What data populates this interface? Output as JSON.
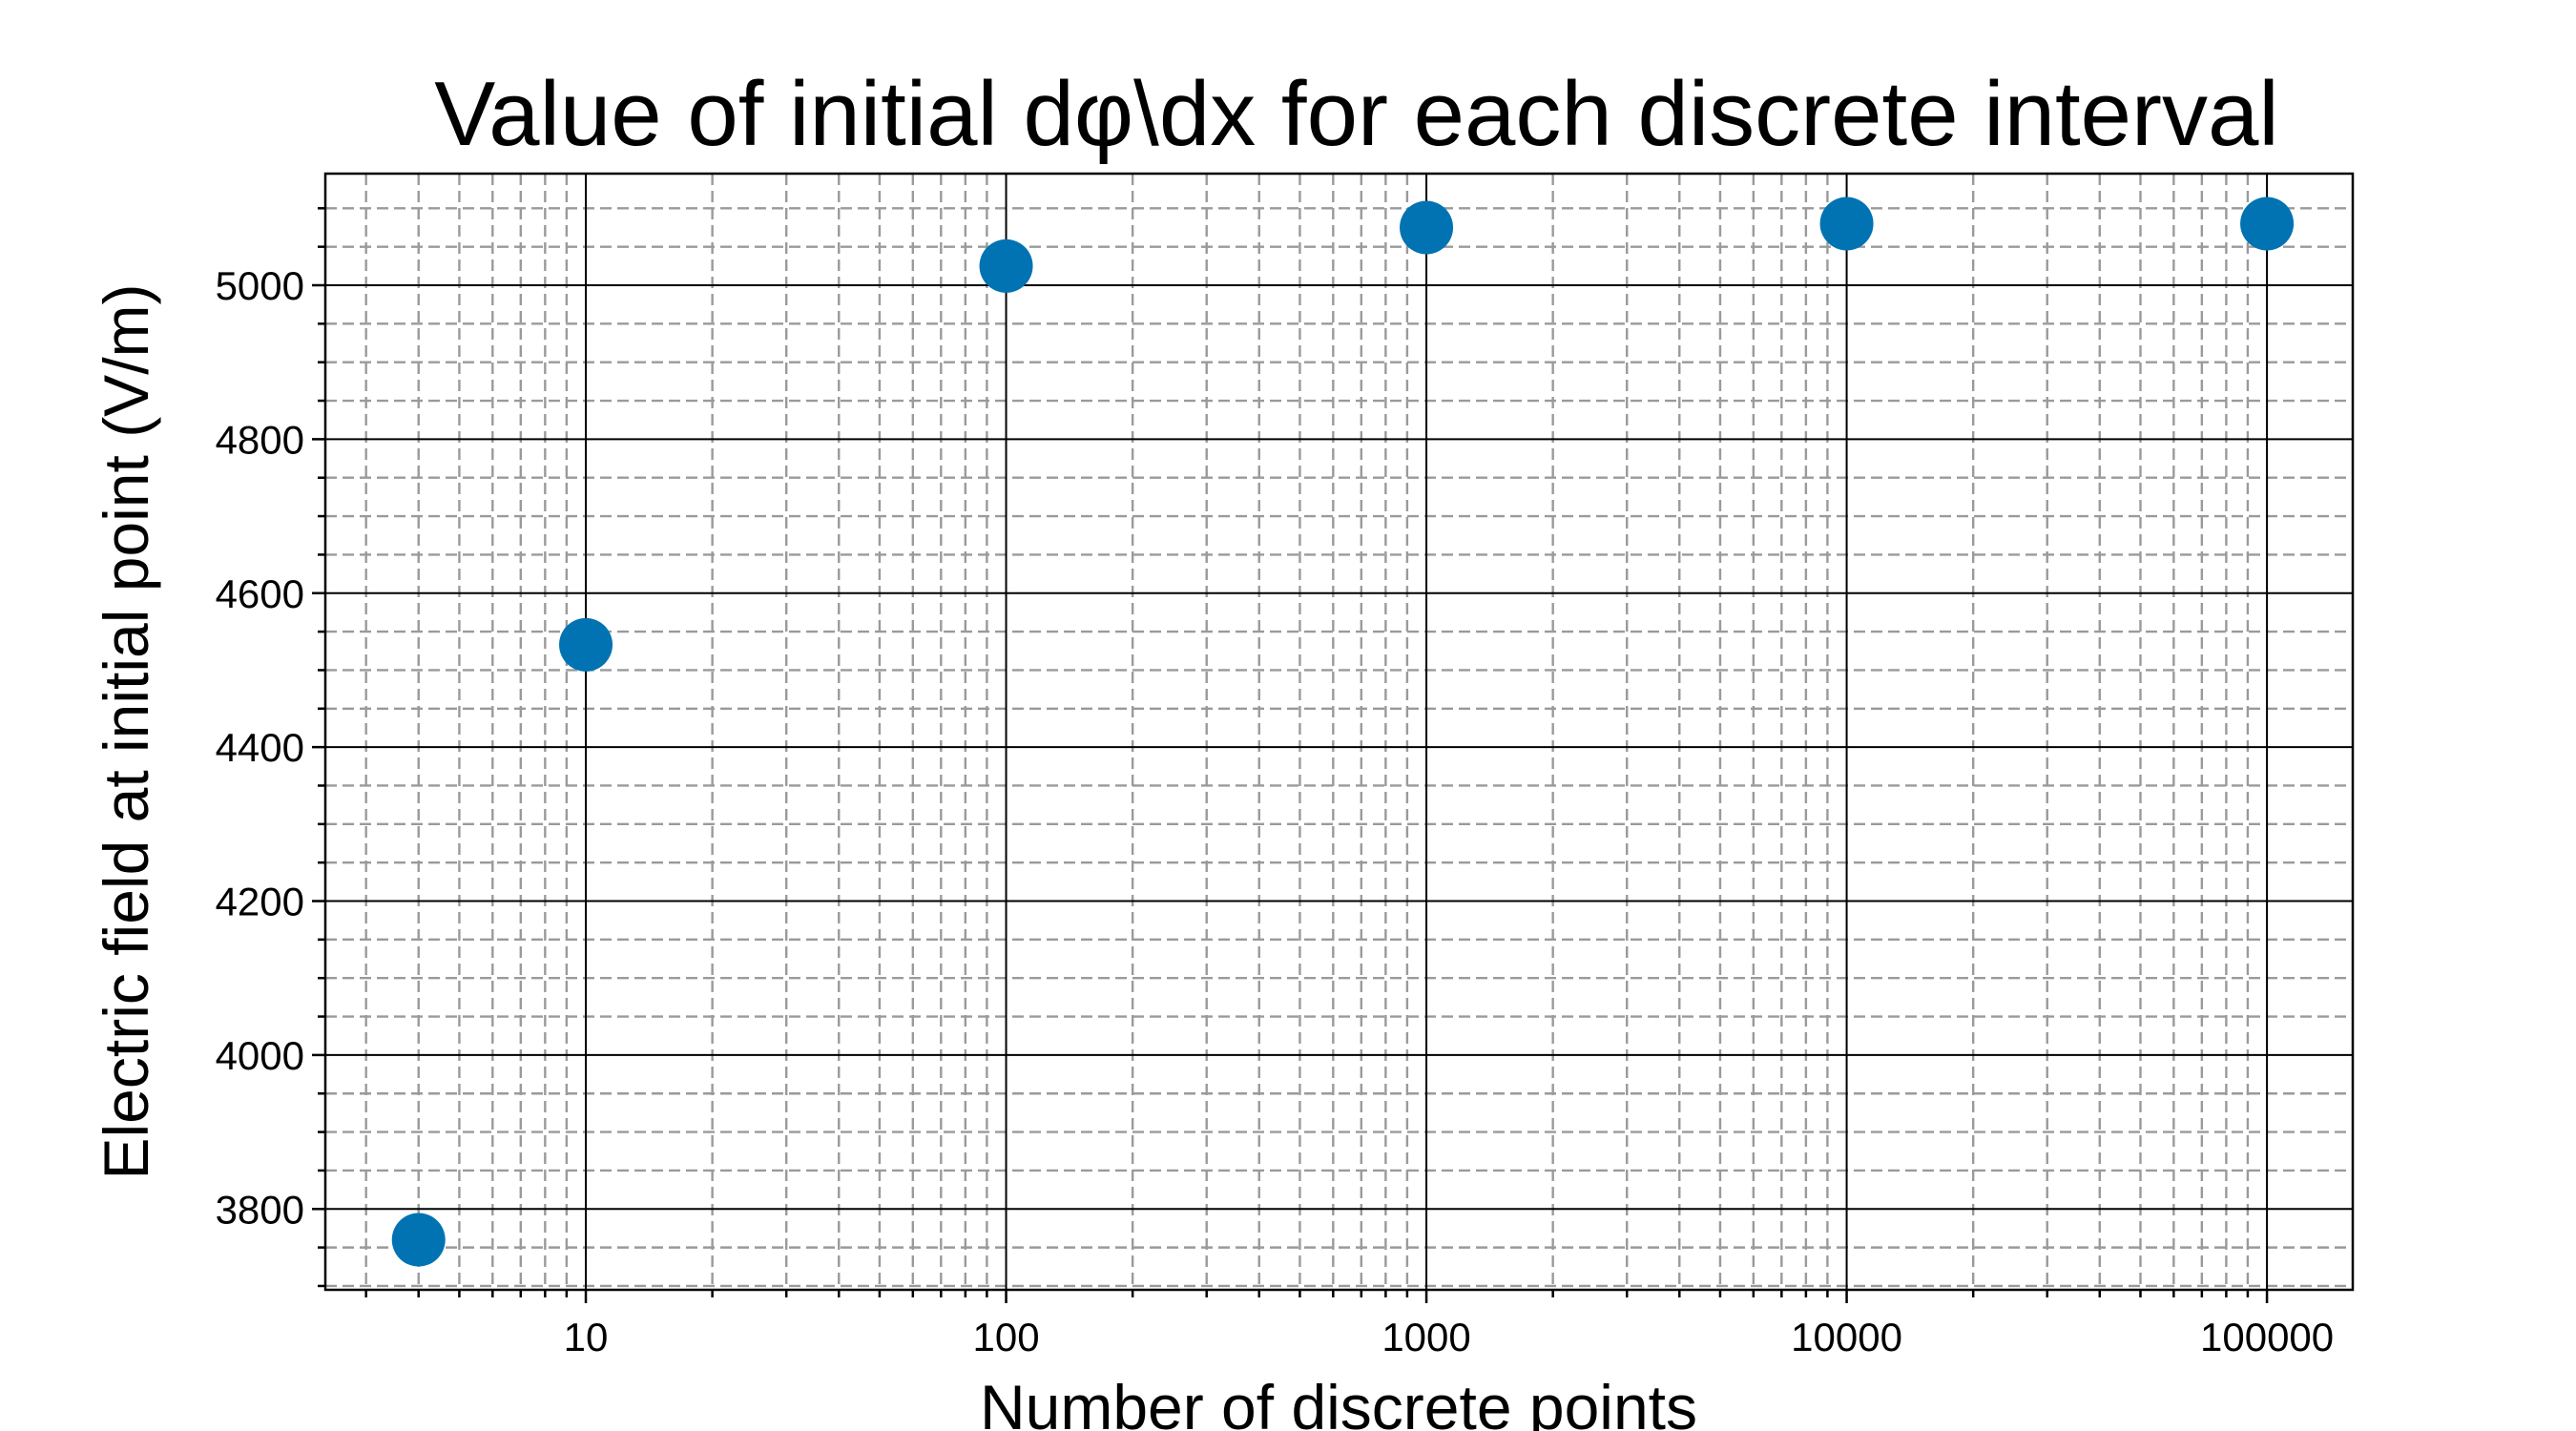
{
  "chart_data": {
    "type": "scatter",
    "title": "Value of initial dφ\\dx for each discrete interval",
    "xlabel": "Number of discrete points",
    "ylabel": "Electric field at initial point (V/m)",
    "x_scale": "log",
    "xlim": [
      2.4,
      160000
    ],
    "ylim": [
      3695,
      5145
    ],
    "x_ticks": [
      10,
      100,
      1000,
      10000,
      100000
    ],
    "x_tick_labels": [
      "10",
      "100",
      "1000",
      "10000",
      "100000"
    ],
    "y_ticks": [
      3800,
      4000,
      4200,
      4400,
      4600,
      4800,
      5000
    ],
    "y_tick_labels": [
      "3800",
      "4000",
      "4200",
      "4400",
      "4600",
      "4800",
      "5000"
    ],
    "y_minor_step": 50,
    "grid": true,
    "marker_color": "#0173b2",
    "points": [
      {
        "x": 4,
        "y": 3760
      },
      {
        "x": 10,
        "y": 4533
      },
      {
        "x": 100,
        "y": 5025
      },
      {
        "x": 1000,
        "y": 5075
      },
      {
        "x": 10000,
        "y": 5080
      },
      {
        "x": 100000,
        "y": 5080
      }
    ]
  }
}
